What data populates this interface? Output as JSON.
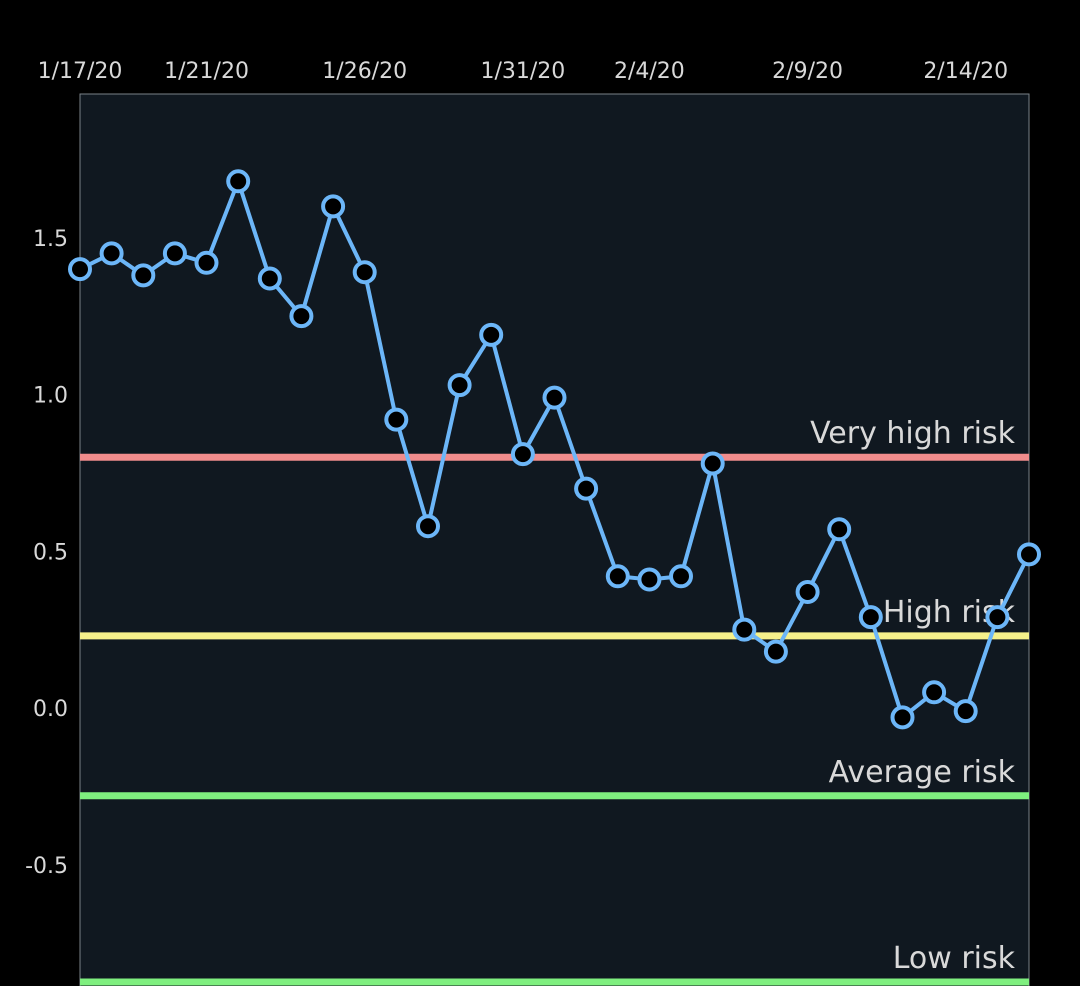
{
  "colors": {
    "background": "#000000",
    "plot_background": "#101820",
    "plot_border": "#7a8288",
    "series_line": "#6cb6f8",
    "point_fill": "#000000",
    "tick_text": "#d9d9d9"
  },
  "chart_data": {
    "type": "line",
    "title": "",
    "xlabel": "",
    "ylabel": "",
    "x_tick_labels": [
      "1/17/20",
      "1/21/20",
      "1/26/20",
      "1/31/20",
      "2/4/20",
      "2/9/20",
      "2/14/20"
    ],
    "x_tick_dates": [
      "2020-01-17",
      "2020-01-21",
      "2020-01-26",
      "2020-01-31",
      "2020-02-04",
      "2020-02-09",
      "2020-02-14"
    ],
    "x_axis_position": "top",
    "y_tick_labels": [
      "1.5",
      "1.0",
      "0.5",
      "0.0",
      "-0.5"
    ],
    "y_tick_values": [
      1.5,
      1.0,
      0.5,
      0.0,
      -0.5
    ],
    "ylim": [
      -0.88,
      2.0
    ],
    "xlim": [
      "2020-01-17",
      "2020-02-16"
    ],
    "grid": false,
    "series": [
      {
        "x": [
          "2020-01-17",
          "2020-01-18",
          "2020-01-19",
          "2020-01-20",
          "2020-01-21",
          "2020-01-22",
          "2020-01-23",
          "2020-01-24",
          "2020-01-25",
          "2020-01-26",
          "2020-01-27",
          "2020-01-28",
          "2020-01-29",
          "2020-01-30",
          "2020-01-31",
          "2020-02-01",
          "2020-02-02",
          "2020-02-03",
          "2020-02-04",
          "2020-02-05",
          "2020-02-06",
          "2020-02-07",
          "2020-02-08",
          "2020-02-09",
          "2020-02-10",
          "2020-02-11",
          "2020-02-12",
          "2020-02-13",
          "2020-02-14",
          "2020-02-15",
          "2020-02-16"
        ],
        "values": [
          1.4,
          1.45,
          1.38,
          1.45,
          1.42,
          1.68,
          1.37,
          1.25,
          1.6,
          1.39,
          0.92,
          0.58,
          1.03,
          1.19,
          0.81,
          0.99,
          0.7,
          0.42,
          0.41,
          0.42,
          0.78,
          0.25,
          0.18,
          0.37,
          0.57,
          0.29,
          -0.03,
          0.05,
          -0.01,
          0.29,
          0.49
        ]
      }
    ],
    "reference_lines": [
      {
        "label": "Very high risk",
        "value": 0.8,
        "color": "#f08c8c"
      },
      {
        "label": "High risk",
        "value": 0.23,
        "color": "#f5f08a"
      },
      {
        "label": "Average risk",
        "value": -0.28,
        "color": "#7fef7f"
      },
      {
        "label": "Low risk",
        "value": -0.88,
        "color": "#7fef7f"
      }
    ]
  }
}
